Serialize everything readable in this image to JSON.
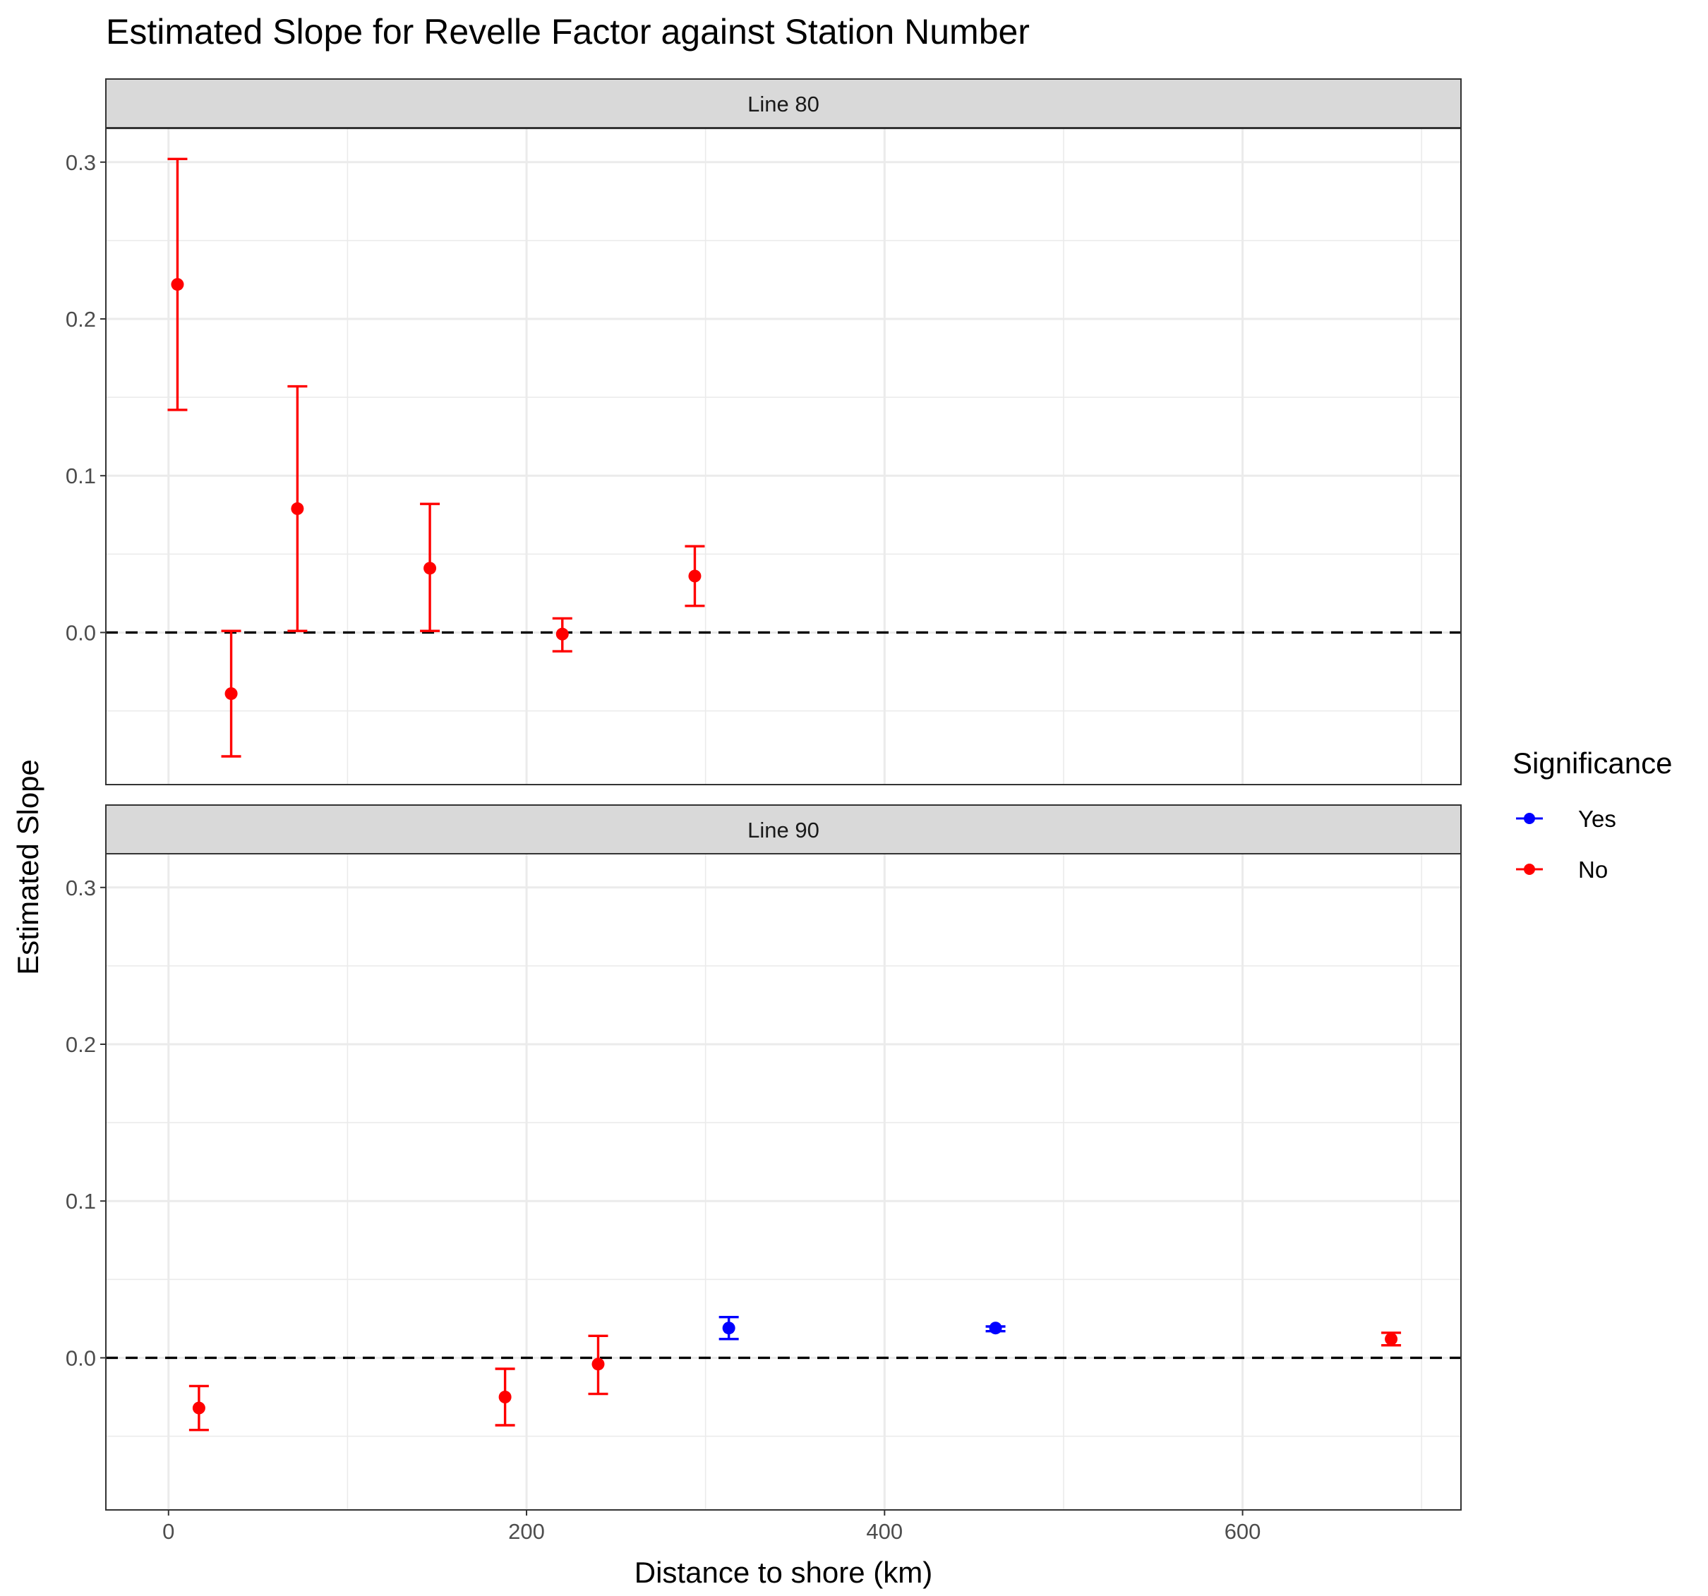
{
  "chart_data": {
    "type": "errorbar",
    "title": "Estimated Slope for Revelle Factor against Station Number",
    "xlabel": "Distance to shore (km)",
    "ylabel": "Estimated Slope",
    "xlim": [
      -35,
      722
    ],
    "ylim": [
      -0.097,
      0.3215
    ],
    "x_ticks": [
      0,
      200,
      400,
      600
    ],
    "y_ticks": [
      0.0,
      0.1,
      0.2,
      0.3
    ],
    "y_tick_labels": [
      "0.0",
      "0.1",
      "0.2",
      "0.3"
    ],
    "reference_line": {
      "y": 0,
      "style": "dashed"
    },
    "grid": true,
    "legend": {
      "title": "Significance",
      "position": "right",
      "items": [
        {
          "label": "Yes",
          "color": "#0000ff"
        },
        {
          "label": "No",
          "color": "#ff0000"
        }
      ]
    },
    "panels": [
      {
        "label": "Line 80",
        "points": [
          {
            "x": 5,
            "y": 0.222,
            "ymin": 0.142,
            "ymax": 0.302,
            "significance": "No"
          },
          {
            "x": 35,
            "y": -0.039,
            "ymin": -0.079,
            "ymax": 0.001,
            "significance": "No"
          },
          {
            "x": 72,
            "y": 0.079,
            "ymin": 0.001,
            "ymax": 0.157,
            "significance": "No"
          },
          {
            "x": 146,
            "y": 0.041,
            "ymin": 0.001,
            "ymax": 0.082,
            "significance": "No"
          },
          {
            "x": 220,
            "y": -0.001,
            "ymin": -0.012,
            "ymax": 0.009,
            "significance": "No"
          },
          {
            "x": 294,
            "y": 0.036,
            "ymin": 0.017,
            "ymax": 0.055,
            "significance": "No"
          }
        ]
      },
      {
        "label": "Line 90",
        "points": [
          {
            "x": 17,
            "y": -0.032,
            "ymin": -0.046,
            "ymax": -0.018,
            "significance": "No"
          },
          {
            "x": 188,
            "y": -0.025,
            "ymin": -0.043,
            "ymax": -0.007,
            "significance": "No"
          },
          {
            "x": 240,
            "y": -0.004,
            "ymin": -0.023,
            "ymax": 0.014,
            "significance": "No"
          },
          {
            "x": 313,
            "y": 0.019,
            "ymin": 0.012,
            "ymax": 0.026,
            "significance": "Yes"
          },
          {
            "x": 462,
            "y": 0.019,
            "ymin": 0.017,
            "ymax": 0.02,
            "significance": "Yes"
          },
          {
            "x": 683,
            "y": 0.012,
            "ymin": 0.008,
            "ymax": 0.016,
            "significance": "No"
          }
        ]
      }
    ]
  }
}
